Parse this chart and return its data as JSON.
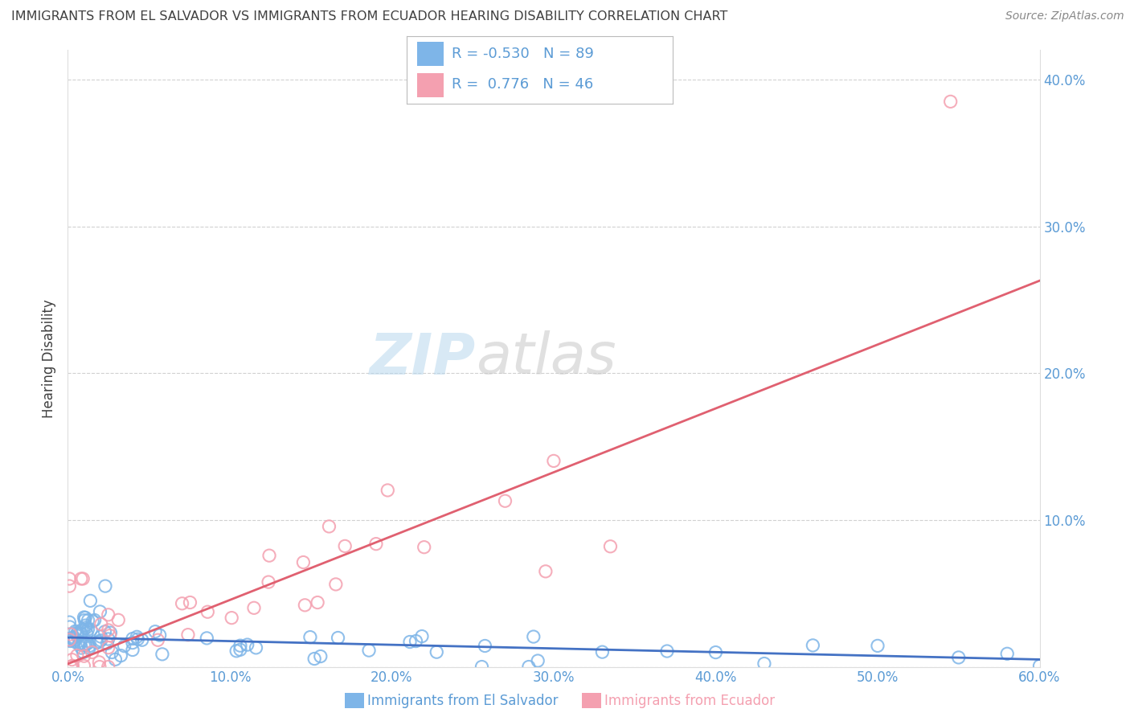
{
  "title": "IMMIGRANTS FROM EL SALVADOR VS IMMIGRANTS FROM ECUADOR HEARING DISABILITY CORRELATION CHART",
  "source": "Source: ZipAtlas.com",
  "xlabel_blue": "Immigrants from El Salvador",
  "xlabel_pink": "Immigrants from Ecuador",
  "ylabel": "Hearing Disability",
  "xlim": [
    0.0,
    0.6
  ],
  "ylim": [
    0.0,
    0.42
  ],
  "xticks": [
    0.0,
    0.1,
    0.2,
    0.3,
    0.4,
    0.5,
    0.6
  ],
  "yticks": [
    0.0,
    0.1,
    0.2,
    0.3,
    0.4
  ],
  "ytick_labels": [
    "",
    "10.0%",
    "20.0%",
    "30.0%",
    "40.0%"
  ],
  "xtick_labels": [
    "0.0%",
    "10.0%",
    "20.0%",
    "30.0%",
    "40.0%",
    "50.0%",
    "60.0%"
  ],
  "R_blue": -0.53,
  "N_blue": 89,
  "R_pink": 0.776,
  "N_pink": 46,
  "blue_color": "#7EB5E8",
  "pink_color": "#F4A0B0",
  "blue_line_color": "#4472C4",
  "pink_line_color": "#E06070",
  "watermark_zip": "ZIP",
  "watermark_atlas": "atlas",
  "background_color": "#FFFFFF",
  "grid_color": "#CCCCCC",
  "title_color": "#404040",
  "axis_color": "#5B9BD5",
  "blue_slope": -0.025,
  "blue_intercept": 0.02,
  "pink_slope": 0.435,
  "pink_intercept": 0.002
}
